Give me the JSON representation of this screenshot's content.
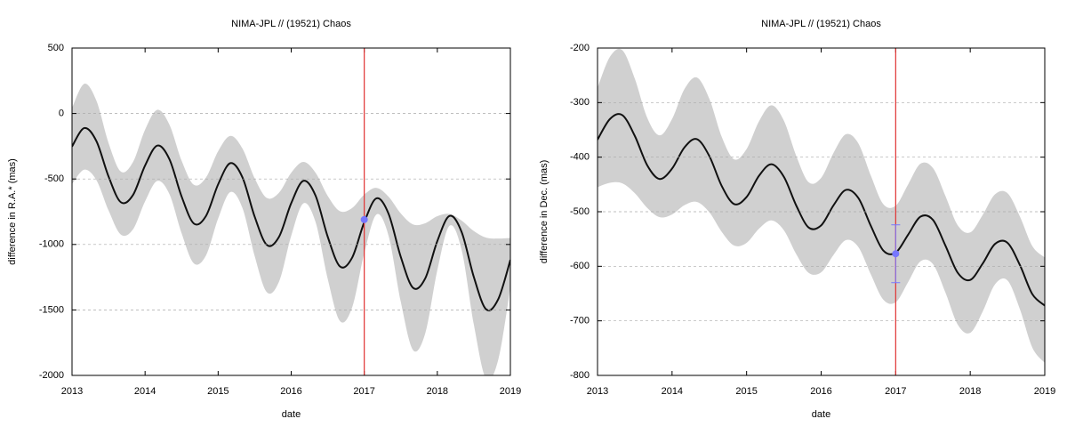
{
  "chart_data": [
    {
      "type": "line",
      "title": "NIMA-JPL // (19521) Chaos",
      "xlabel": "date",
      "ylabel": "difference in R.A.* (mas)",
      "xlim": [
        2013,
        2019
      ],
      "xticks": [
        2013,
        2014,
        2015,
        2016,
        2017,
        2018,
        2019
      ],
      "ylim": [
        -2000,
        500
      ],
      "yticks": [
        -2000,
        -1500,
        -1000,
        -500,
        0,
        500
      ],
      "grid": true,
      "x": [
        2013,
        2013.167,
        2013.333,
        2013.5,
        2013.667,
        2013.833,
        2014,
        2014.167,
        2014.333,
        2014.5,
        2014.667,
        2014.833,
        2015,
        2015.167,
        2015.333,
        2015.5,
        2015.667,
        2015.833,
        2016,
        2016.167,
        2016.333,
        2016.5,
        2016.667,
        2016.833,
        2017,
        2017.167,
        2017.333,
        2017.5,
        2017.667,
        2017.833,
        2018,
        2018.167,
        2018.333,
        2018.5,
        2018.667,
        2018.833,
        2019
      ],
      "band": {
        "color": "#d0d0d0",
        "upper": [
          43,
          227,
          99,
          -225,
          -443,
          -372,
          -123,
          28,
          -85,
          -360,
          -544,
          -489,
          -288,
          -171,
          -268,
          -494,
          -645,
          -605,
          -453,
          -370,
          -452,
          -629,
          -746,
          -722,
          -619,
          -568,
          -635,
          -763,
          -847,
          -838,
          -784,
          -767,
          -818,
          -898,
          -948,
          -955,
          -950
        ],
        "lower": [
          -539,
          -429,
          -508,
          -740,
          -924,
          -886,
          -671,
          -515,
          -615,
          -915,
          -1144,
          -1085,
          -802,
          -600,
          -722,
          -1089,
          -1365,
          -1284,
          -934,
          -686,
          -828,
          -1263,
          -1585,
          -1483,
          -1066,
          -771,
          -935,
          -1438,
          -1806,
          -1682,
          -1197,
          -857,
          -1042,
          -1612,
          -2026,
          -1882,
          -1329
        ]
      },
      "line": {
        "color": "#111111",
        "values": [
          -252,
          -111,
          -210,
          -481,
          -677,
          -624,
          -397,
          -245,
          -349,
          -634,
          -840,
          -783,
          -541,
          -379,
          -488,
          -788,
          -1004,
          -942,
          -685,
          -514,
          -627,
          -941,
          -1168,
          -1102,
          -830,
          -648,
          -766,
          -1095,
          -1331,
          -1261,
          -974,
          -782,
          -905,
          -1249,
          -1495,
          -1419,
          -1118
        ]
      },
      "point": {
        "x": 2017,
        "y": -810,
        "color": "#7777ff"
      },
      "vline": {
        "x": 2017,
        "color": "#e03030"
      }
    },
    {
      "type": "line",
      "title": "NIMA-JPL // (19521) Chaos",
      "xlabel": "date",
      "ylabel": "difference in Dec. (mas)",
      "xlim": [
        2013,
        2019
      ],
      "xticks": [
        2013,
        2014,
        2015,
        2016,
        2017,
        2018,
        2019
      ],
      "ylim": [
        -800,
        -200
      ],
      "yticks": [
        -800,
        -700,
        -600,
        -500,
        -400,
        -300,
        -200
      ],
      "grid": true,
      "x": [
        2013,
        2013.167,
        2013.333,
        2013.5,
        2013.667,
        2013.833,
        2014,
        2014.167,
        2014.333,
        2014.5,
        2014.667,
        2014.833,
        2015,
        2015.167,
        2015.333,
        2015.5,
        2015.667,
        2015.833,
        2016,
        2016.167,
        2016.333,
        2016.5,
        2016.667,
        2016.833,
        2017,
        2017.167,
        2017.333,
        2017.5,
        2017.667,
        2017.833,
        2018,
        2018.167,
        2018.333,
        2018.5,
        2018.667,
        2018.833,
        2019
      ],
      "band": {
        "color": "#d0d0d0",
        "upper": [
          -273,
          -216,
          -204,
          -256,
          -328,
          -360,
          -330,
          -275,
          -254,
          -293,
          -363,
          -404,
          -385,
          -334,
          -305,
          -333,
          -398,
          -446,
          -438,
          -392,
          -358,
          -375,
          -434,
          -486,
          -489,
          -450,
          -412,
          -420,
          -471,
          -525,
          -538,
          -506,
          -468,
          -466,
          -509,
          -563,
          -584
        ],
        "lower": [
          -455,
          -447,
          -448,
          -466,
          -493,
          -510,
          -505,
          -488,
          -482,
          -501,
          -537,
          -562,
          -557,
          -531,
          -516,
          -534,
          -578,
          -612,
          -611,
          -579,
          -552,
          -565,
          -615,
          -661,
          -666,
          -629,
          -591,
          -596,
          -648,
          -707,
          -722,
          -683,
          -633,
          -626,
          -679,
          -749,
          -777
        ]
      },
      "line": {
        "color": "#111111",
        "values": [
          -368,
          -330,
          -323,
          -361,
          -415,
          -440,
          -421,
          -382,
          -367,
          -398,
          -453,
          -486,
          -473,
          -434,
          -413,
          -436,
          -489,
          -529,
          -525,
          -488,
          -460,
          -475,
          -526,
          -571,
          -575,
          -542,
          -509,
          -515,
          -562,
          -612,
          -625,
          -595,
          -559,
          -557,
          -598,
          -651,
          -672
        ]
      },
      "point": {
        "x": 2017,
        "y": -577,
        "error": 53,
        "color": "#7777ff"
      },
      "vline": {
        "x": 2017,
        "color": "#e03030"
      }
    }
  ]
}
